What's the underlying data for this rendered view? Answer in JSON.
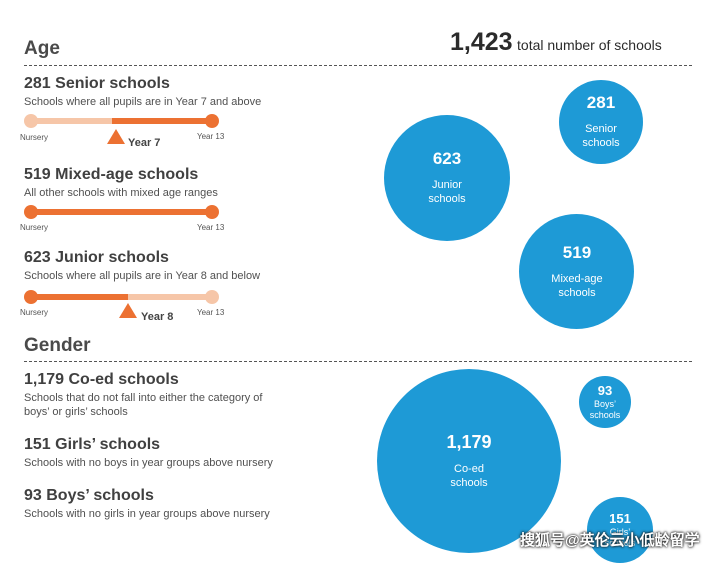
{
  "header": {
    "age_title": "Age",
    "total_value": "1,423",
    "total_label": "total number of schools"
  },
  "age_items": [
    {
      "title": "281 Senior schools",
      "desc": "Schools where all pupils are in Year 7 and above",
      "left": "Nursery",
      "right": "Year 13",
      "marker": "Year 7"
    },
    {
      "title": "519 Mixed-age schools",
      "desc": "All other schools with mixed age ranges",
      "left": "Nursery",
      "right": "Year 13"
    },
    {
      "title": "623 Junior schools",
      "desc": "Schools where all pupils are in Year 8 and below",
      "left": "Nursery",
      "right": "Year 13",
      "marker": "Year 8"
    }
  ],
  "gender": {
    "title": "Gender",
    "items": [
      {
        "title": "1,179 Co-ed schools",
        "desc1": "Schools that do not fall into either the category of",
        "desc2": "boys’ or girls’ schools"
      },
      {
        "title": "151 Girls’ schools",
        "desc1": "Schools with no boys in year groups above nursery"
      },
      {
        "title": "93 Boys’ schools",
        "desc1": "Schools with no girls in year groups above nursery"
      }
    ]
  },
  "chart_data": [
    {
      "type": "bubble",
      "title": "Age",
      "categories": [
        "Senior schools",
        "Junior schools",
        "Mixed-age schools"
      ],
      "values": [
        281,
        623,
        519
      ],
      "labels": [
        [
          "Senior",
          "schools"
        ],
        [
          "Junior",
          "schools"
        ],
        [
          "Mixed-age",
          "schools"
        ]
      ],
      "colors": {
        "bubble": "#1e9ad6",
        "bar": "#ec7132",
        "bar_light": "#f6c6a8"
      }
    },
    {
      "type": "bubble",
      "title": "Gender",
      "categories": [
        "Co-ed schools",
        "Boys' schools",
        "Girls' schools"
      ],
      "values": [
        1179,
        93,
        151
      ],
      "labels": [
        [
          "Co-ed",
          "schools"
        ],
        [
          "Boys’",
          "schools"
        ],
        [
          "Girls’",
          "schools"
        ]
      ],
      "colors": {
        "bubble": "#1e9ad6"
      }
    }
  ],
  "watermark": "搜狐号@英伦云小低龄留学"
}
